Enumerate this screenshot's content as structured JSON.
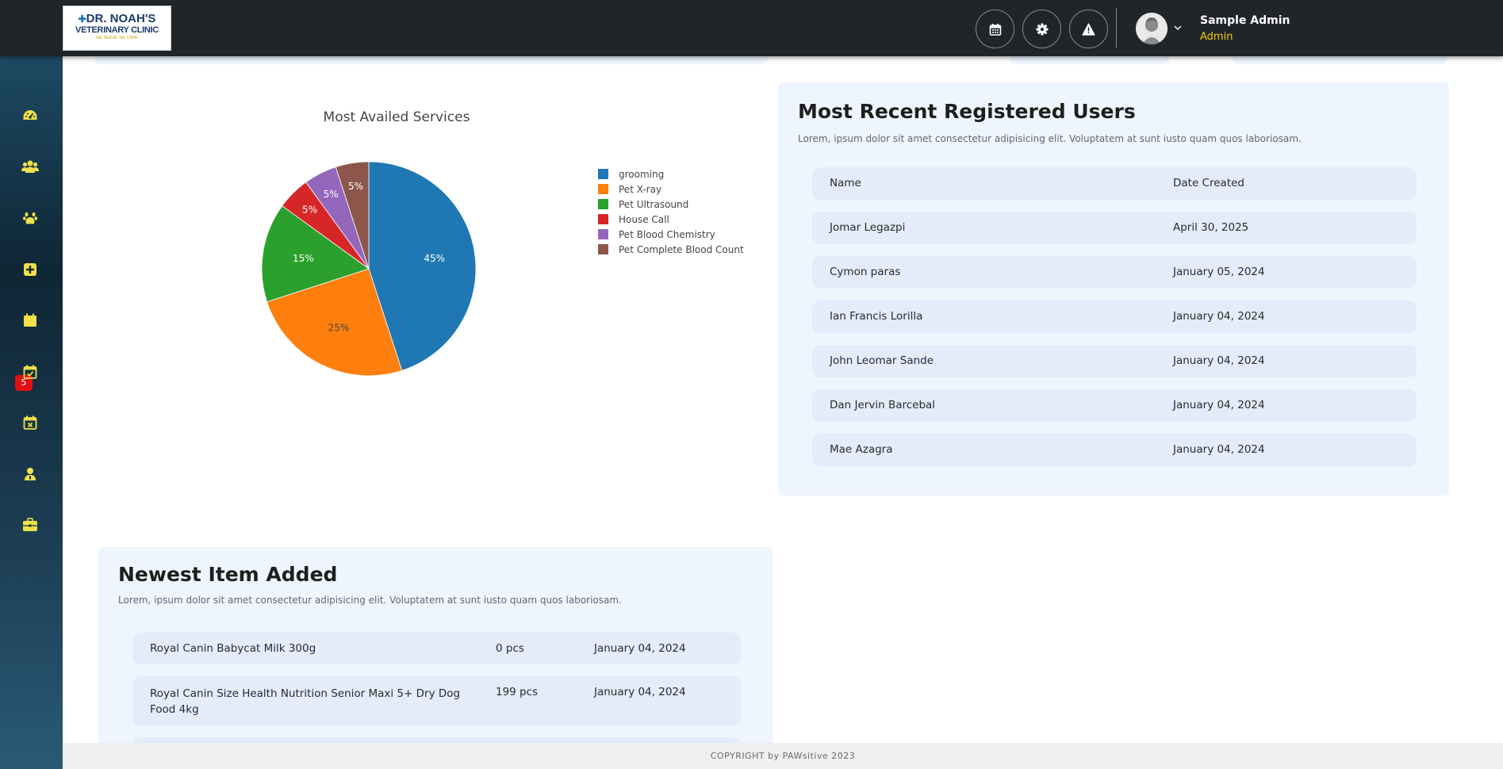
{
  "header": {
    "logo": {
      "line1": "DR. NOAH'S",
      "line2": "VETERINARY CLINIC",
      "line3": "WE SERVE, WE CARE"
    },
    "buttons": [
      {
        "icon": "calendar-icon"
      },
      {
        "icon": "gear-icon"
      },
      {
        "icon": "warning-icon"
      }
    ],
    "user": {
      "name": "Sample Admin",
      "role": "Admin"
    }
  },
  "sidebar": {
    "items": [
      {
        "icon": "dashboard-icon"
      },
      {
        "icon": "users-icon"
      },
      {
        "icon": "paw-icon"
      },
      {
        "icon": "medical-plus-icon"
      },
      {
        "icon": "calendar-alert-icon",
        "badge": "5"
      },
      {
        "icon": "calendar-check-icon"
      },
      {
        "icon": "calendar-x-icon"
      },
      {
        "icon": "staff-icon"
      },
      {
        "icon": "briefcase-icon"
      }
    ],
    "accent_color": "#f0e04a"
  },
  "chart_data": {
    "type": "pie",
    "title": "Most Availed Services",
    "categories": [
      "grooming",
      "Pet X-ray",
      "Pet Ultrasound",
      "House Call",
      "Pet Blood Chemistry",
      "Pet Complete Blood Count"
    ],
    "values": [
      45,
      25,
      15,
      5,
      5,
      5
    ],
    "labels": [
      "45%",
      "25%",
      "15%",
      "5%",
      "5%",
      "5%"
    ],
    "colors": [
      "#1f77b4",
      "#ff7f0e",
      "#2ca02c",
      "#d62728",
      "#9467bd",
      "#8c564b"
    ],
    "legend": "right"
  },
  "recent_users": {
    "title": "Most Recent Registered Users",
    "description": "Lorem, ipsum dolor sit amet consectetur adipisicing elit. Voluptatem at sunt iusto quam quos laboriosam.",
    "columns": [
      "Name",
      "Date Created"
    ],
    "rows": [
      {
        "name": "Jomar Legazpi",
        "date": "April 30, 2025"
      },
      {
        "name": "Cymon paras",
        "date": "January 05, 2024"
      },
      {
        "name": "Ian Francis Lorilla",
        "date": "January 04, 2024"
      },
      {
        "name": "John Leomar Sande",
        "date": "January 04, 2024"
      },
      {
        "name": "Dan Jervin Barcebal",
        "date": "January 04, 2024"
      },
      {
        "name": "Mae Azagra",
        "date": "January 04, 2024"
      }
    ]
  },
  "newest_items": {
    "title": "Newest Item Added",
    "description": "Lorem, ipsum dolor sit amet consectetur adipisicing elit. Voluptatem at sunt iusto quam quos laboriosam.",
    "rows": [
      {
        "name": "Royal Canin Babycat Milk 300g",
        "qty": "0 pcs",
        "date": "January 04, 2024"
      },
      {
        "name": "Royal Canin Size Health Nutrition Senior Maxi 5+ Dry Dog Food 4kg",
        "qty": "199 pcs",
        "date": "January 04, 2024"
      }
    ]
  },
  "footer": {
    "text": "COPYRIGHT by PAWsitive 2023"
  }
}
